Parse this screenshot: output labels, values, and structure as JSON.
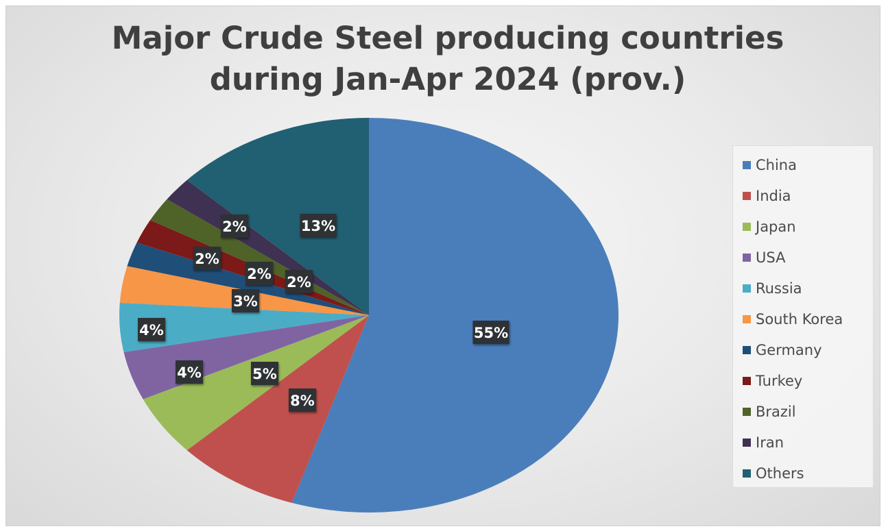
{
  "chart_data": {
    "type": "pie",
    "title": "Major Crude Steel producing countries during Jan-Apr 2024 (prov.)",
    "title_lines": [
      "Major Crude Steel producing countries",
      "during Jan-Apr 2024 (prov.)"
    ],
    "legend_position": "right",
    "slices": [
      {
        "label": "China",
        "value": 55,
        "display": "55%",
        "color": "#4a7ebb"
      },
      {
        "label": "India",
        "value": 8,
        "display": "8%",
        "color": "#c0504d"
      },
      {
        "label": "Japan",
        "value": 5,
        "display": "5%",
        "color": "#9bbb59"
      },
      {
        "label": "USA",
        "value": 4,
        "display": "4%",
        "color": "#8064a2"
      },
      {
        "label": "Russia",
        "value": 4,
        "display": "4%",
        "color": "#4bacc6"
      },
      {
        "label": "South Korea",
        "value": 3,
        "display": "3%",
        "color": "#f79646"
      },
      {
        "label": "Germany",
        "value": 2,
        "display": "2%",
        "color": "#1f4e79"
      },
      {
        "label": "Turkey",
        "value": 2,
        "display": "2%",
        "color": "#7b1a18"
      },
      {
        "label": "Brazil",
        "value": 2,
        "display": "2%",
        "color": "#4f6228"
      },
      {
        "label": "Iran",
        "value": 2,
        "display": "2%",
        "color": "#3f3151"
      },
      {
        "label": "Others",
        "value": 13,
        "display": "13%",
        "color": "#215f73"
      }
    ]
  }
}
